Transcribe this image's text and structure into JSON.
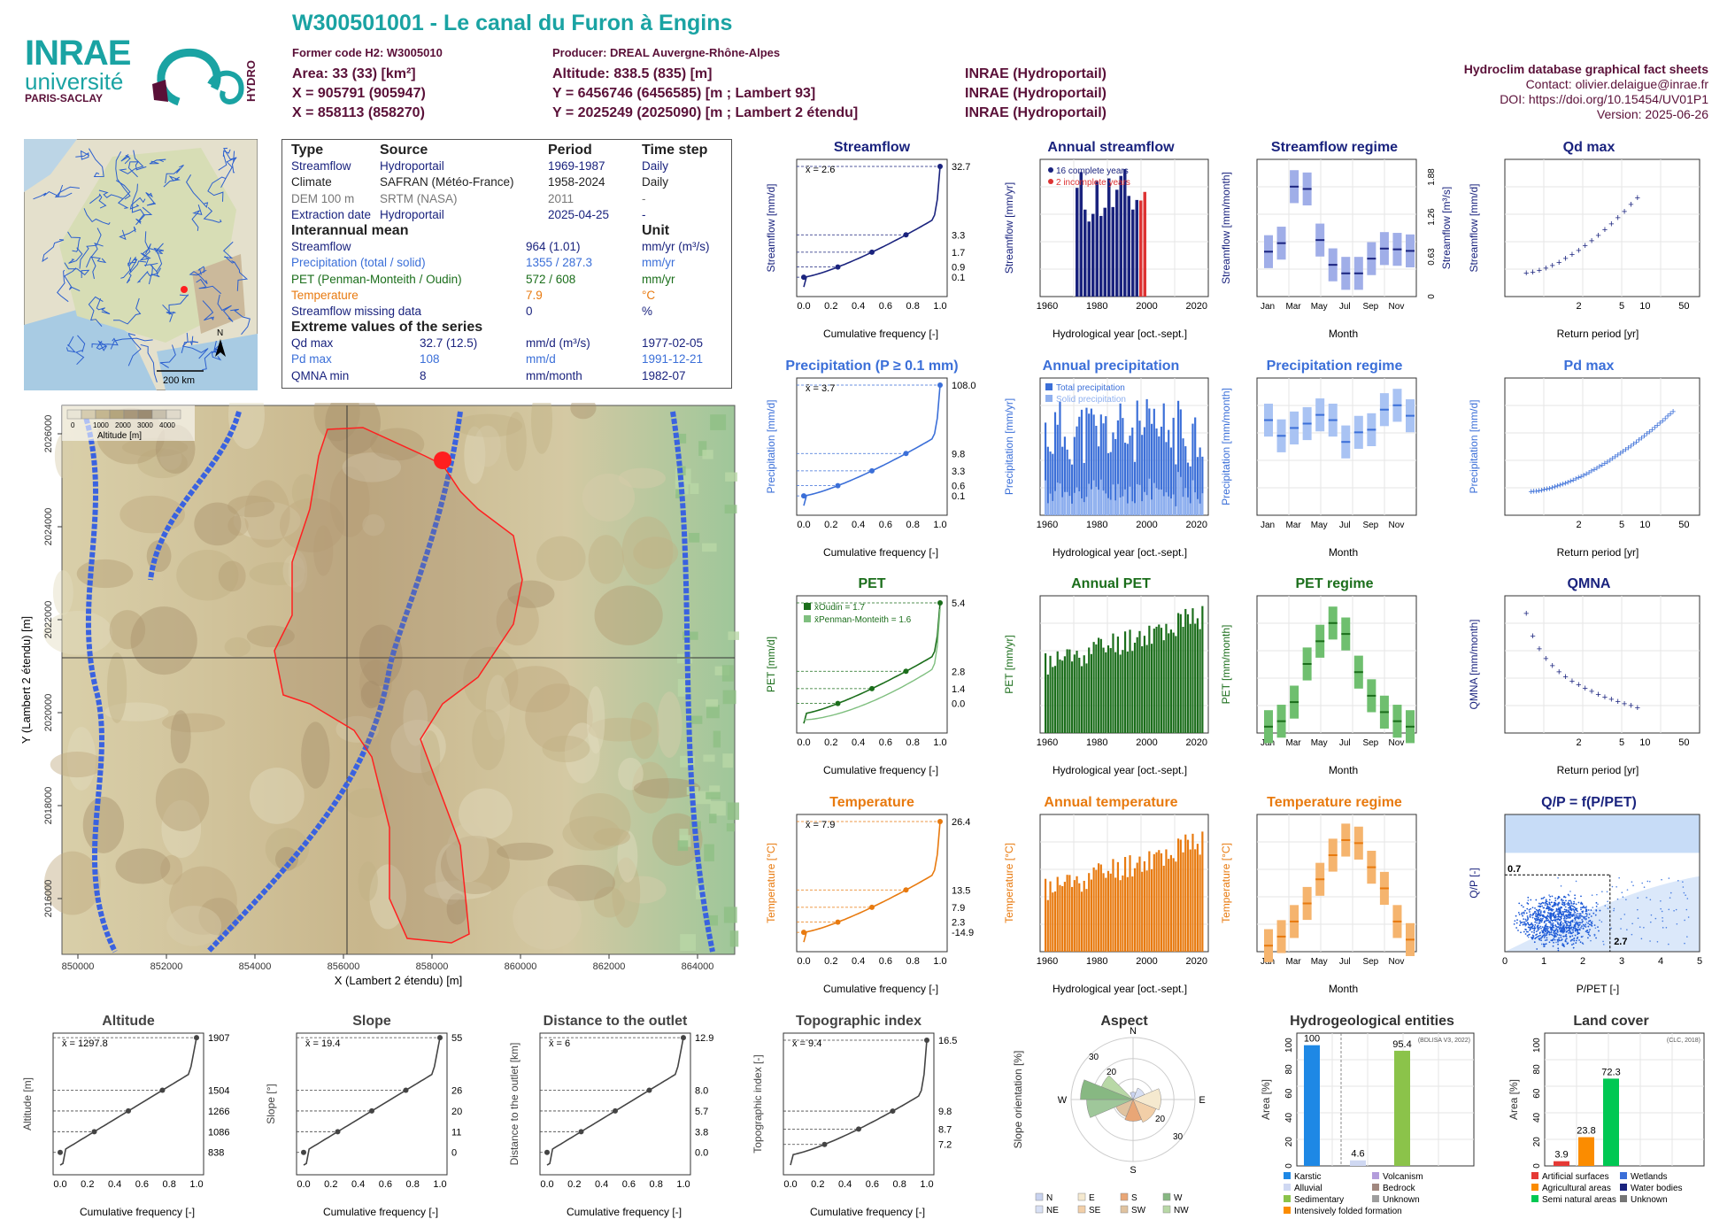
{
  "header": {
    "title": "W300501001 - Le canal du Furon à Engins",
    "former_code": "Former code H2: W3005010",
    "producer": "Producer: DREAL Auvergne-Rhône-Alpes",
    "area": "Area: 33 (33) [km²]",
    "altitude": "Altitude: 838.5 (835) [m]",
    "x93": "X = 905791 (905947)",
    "y93": "Y = 6456746 (6456585) [m ; Lambert 93]",
    "src1": "INRAE (Hydroportail)",
    "x2e": "X = 858113 (858270)",
    "y2e": "Y = 2025249 (2025090) [m ; Lambert 2 étendu]",
    "src2": "INRAE (Hydroportail)",
    "src3": "INRAE (Hydroportail)"
  },
  "logos": {
    "inrae": "INRAE",
    "universite": "université",
    "paris_saclay": "PARIS-SACLAY",
    "hydro": "HYDRO"
  },
  "right_info": {
    "db": "Hydroclim database graphical fact sheets",
    "contact": "Contact: olivier.delaigue@inrae.fr",
    "doi": "DOI: https://doi.org/10.15454/UV01P1",
    "version": "Version: 2025-06-26"
  },
  "minimap": {
    "scale": "200 km",
    "north": "N"
  },
  "info_table": {
    "h1": [
      "Type",
      "Source",
      "Period",
      "Time step"
    ],
    "rows1": [
      [
        "Streamflow",
        "Hydroportail",
        "1969-1987",
        "Daily"
      ],
      [
        "Climate",
        "SAFRAN (Météo-France)",
        "1958-2024",
        "Daily"
      ],
      [
        "DEM 100 m",
        "SRTM (NASA)",
        "2011",
        "-"
      ],
      [
        "Extraction date",
        "Hydroportail",
        "2025-04-25",
        "-"
      ]
    ],
    "h2": [
      "Interannual mean",
      "Unit"
    ],
    "rows2": [
      [
        "Streamflow",
        "964 (1.01)",
        "mm/yr (m³/s)"
      ],
      [
        "Precipitation (total / solid)",
        "1355 / 287.3",
        "mm/yr"
      ],
      [
        "PET (Penman-Monteith / Oudin)",
        "572 / 608",
        "mm/yr"
      ],
      [
        "Temperature",
        "7.9",
        "°C"
      ],
      [
        "Streamflow missing data",
        "0",
        "%"
      ]
    ],
    "h3": "Extreme values of the series",
    "rows3": [
      [
        "Qd max",
        "32.7 (12.5)",
        "mm/d (m³/s)",
        "1977-02-05"
      ],
      [
        "Pd max",
        "108",
        "mm/d",
        "1991-12-21"
      ],
      [
        "QMNA min",
        "8",
        "mm/month",
        "1982-07"
      ]
    ]
  },
  "main_map": {
    "xlabel": "X (Lambert 2 étendu) [m]",
    "ylabel": "Y (Lambert 2 étendu) [m]",
    "xticks": [
      "850000",
      "852000",
      "854000",
      "856000",
      "858000",
      "860000",
      "862000",
      "864000"
    ],
    "yticks": [
      "2016000",
      "2018000",
      "2020000",
      "2022000",
      "2024000",
      "2026000"
    ],
    "legend_title": "Altitude [m]",
    "legend_ticks": [
      "0",
      "1000",
      "2000",
      "3000",
      "4000"
    ]
  },
  "chart_data": [
    {
      "id": "streamflow",
      "type": "line",
      "title": "Streamflow",
      "color": "#1a237e",
      "xlabel": "Cumulative frequency [-]",
      "ylabel": "Streamflow [mm/d]",
      "mean": "x̄ = 2.6",
      "y_log": true,
      "x": [
        0,
        0.25,
        0.5,
        0.75,
        1
      ],
      "y": [
        0.1,
        0.9,
        1.7,
        3.3,
        32.7
      ],
      "right_ticks": [
        "32.7",
        "3.3",
        "1.7",
        "0.9",
        "0.1"
      ]
    },
    {
      "id": "annual_streamflow",
      "type": "bar",
      "title": "Annual streamflow",
      "color": "#1a237e",
      "xlabel": "Hydrological year [oct.-sept.]",
      "ylabel": "Streamflow [mm/yr]",
      "legend": [
        "16 complete years",
        "2 incomplete years"
      ],
      "xlim": [
        1958,
        2024
      ],
      "ylim": [
        0,
        1200
      ]
    },
    {
      "id": "streamflow_regime",
      "type": "box",
      "title": "Streamflow regime",
      "color": "#1a237e",
      "xlabel": "Month",
      "ylabel": "Streamflow [mm/month]",
      "right_label": "Streamflow [m³/s]",
      "right_ticks": [
        "1.88",
        "1.26",
        "0.63",
        "0"
      ],
      "medians": [
        57,
        68,
        141,
        138,
        72,
        40,
        29,
        29,
        48,
        61,
        60,
        58
      ]
    },
    {
      "id": "qd_max",
      "type": "scatter",
      "title": "Qd max",
      "color": "#1a237e",
      "xlabel": "Return period [yr]",
      "ylabel": "Streamflow [mm/d]"
    },
    {
      "id": "precipitation",
      "type": "line",
      "title": "Precipitation (P ≥ 0.1 mm)",
      "color": "#3b6fd8",
      "xlabel": "Cumulative frequency [-]",
      "ylabel": "Precipitation [mm/d]",
      "mean": "x̄ = 3.7",
      "right_ticks": [
        "108.0",
        "9.8",
        "3.3",
        "0.6",
        "0.1"
      ]
    },
    {
      "id": "annual_precipitation",
      "type": "bar",
      "title": "Annual precipitation",
      "color": "#3b6fd8",
      "xlabel": "Hydrological year [oct.-sept.]",
      "ylabel": "Precipitation [mm/yr]",
      "legend": [
        "Total precipitation",
        "Solid precipitation"
      ]
    },
    {
      "id": "precipitation_regime",
      "type": "box",
      "title": "Precipitation regime",
      "color": "#3b6fd8",
      "xlabel": "Month",
      "ylabel": "Precipitation [mm/month]",
      "medians": [
        108,
        90,
        99,
        104,
        114,
        108,
        83,
        94,
        97,
        120,
        125,
        113
      ]
    },
    {
      "id": "pd_max",
      "type": "scatter",
      "title": "Pd max",
      "color": "#3b6fd8",
      "xlabel": "Return period [yr]",
      "ylabel": "Precipitation [mm/d]"
    },
    {
      "id": "pet",
      "type": "line",
      "title": "PET",
      "color": "#1b6e1b",
      "xlabel": "Cumulative frequency [-]",
      "ylabel": "PET [mm/d]",
      "legend": [
        "x̄Oudin = 1.7",
        "x̄Penman-Monteith = 1.6"
      ],
      "right_ticks": [
        "5.4",
        "2.8",
        "1.4",
        "0.0"
      ]
    },
    {
      "id": "annual_pet",
      "type": "bar",
      "title": "Annual PET",
      "color": "#1b6e1b",
      "xlabel": "Hydrological year [oct.-sept.]",
      "ylabel": "PET [mm/yr]"
    },
    {
      "id": "pet_regime",
      "type": "box",
      "title": "PET regime",
      "color": "#1b6e1b",
      "xlabel": "Month",
      "ylabel": "PET [mm/month]",
      "medians": [
        6,
        12,
        33,
        75,
        100,
        120,
        108,
        66,
        40,
        22,
        12,
        6
      ]
    },
    {
      "id": "qmna",
      "type": "scatter",
      "title": "QMNA",
      "color": "#1a237e",
      "xlabel": "Return period [yr]",
      "ylabel": "QMNA [mm/month]"
    },
    {
      "id": "temperature",
      "type": "line",
      "title": "Temperature",
      "color": "#e87a0f",
      "xlabel": "Cumulative frequency [-]",
      "ylabel": "Temperature [°C]",
      "mean": "x̄ = 7.9",
      "right_ticks": [
        "26.4",
        "13.5",
        "7.9",
        "2.3",
        "-14.9"
      ]
    },
    {
      "id": "annual_temperature",
      "type": "bar",
      "title": "Annual temperature",
      "color": "#e87a0f",
      "xlabel": "Hydrological year [oct.-sept.]",
      "ylabel": "Temperature [°C]"
    },
    {
      "id": "temperature_regime",
      "type": "box",
      "title": "Temperature regime",
      "color": "#e87a0f",
      "xlabel": "Month",
      "ylabel": "Temperature [°C]",
      "medians": [
        -0.5,
        1,
        3.5,
        6.5,
        10.5,
        14.5,
        17,
        16.5,
        12.5,
        9,
        3.5,
        0.5
      ]
    },
    {
      "id": "qp_ppet",
      "type": "scatter",
      "title": "Q/P = f(P/PET)",
      "color": "#1a237e",
      "xlabel": "P/PET [-]",
      "ylabel": "Q/P [-]",
      "annot": [
        "0.7",
        "2.7"
      ]
    },
    {
      "id": "altitude",
      "type": "line",
      "title": "Altitude",
      "color": "#444",
      "xlabel": "Cumulative frequency [-]",
      "ylabel": "Altitude [m]",
      "mean": "x̄ = 1297.8",
      "right_ticks": [
        "1907",
        "1504",
        "1266",
        "1086",
        "838"
      ]
    },
    {
      "id": "slope",
      "type": "line",
      "title": "Slope",
      "color": "#444",
      "xlabel": "Cumulative frequency [-]",
      "ylabel": "Slope [°]",
      "mean": "x̄ = 19.4",
      "right_ticks": [
        "55",
        "26",
        "20",
        "11",
        "0"
      ]
    },
    {
      "id": "distance",
      "type": "line",
      "title": "Distance to the outlet",
      "color": "#444",
      "xlabel": "Cumulative frequency [-]",
      "ylabel": "Distance to the outlet [km]",
      "mean": "x̄ = 6",
      "right_ticks": [
        "12.9",
        "8.0",
        "5.7",
        "3.8",
        "0.0"
      ]
    },
    {
      "id": "topo",
      "type": "line",
      "title": "Topographic index",
      "color": "#444",
      "xlabel": "Cumulative frequency [-]",
      "ylabel": "Topographic index [-]",
      "mean": "x̄ = 9.4",
      "right_ticks": [
        "16.5",
        "9.8",
        "8.7",
        "7.2"
      ]
    },
    {
      "id": "aspect",
      "type": "pie",
      "title": "Aspect",
      "ylabel": "Slope orientation [%]",
      "legend": [
        "N",
        "E",
        "S",
        "W",
        "NE",
        "SE",
        "SW",
        "NW"
      ]
    },
    {
      "id": "hydrogeology",
      "type": "bar",
      "title": "Hydrogeological entities",
      "ylabel": "Area [%]",
      "source": "(BDLISA V3, 2022)",
      "values": [
        100,
        4.6,
        95.4
      ],
      "legend": [
        "Karstic",
        "Volcanism",
        "Alluvial",
        "Bedrock",
        "Sedimentary",
        "Unknown",
        "Intensively folded formation"
      ]
    },
    {
      "id": "land_cover",
      "type": "bar",
      "title": "Land cover",
      "ylabel": "Area [%]",
      "source": "(CLC, 2018)",
      "values": [
        3.9,
        23.8,
        72.3
      ],
      "legend": [
        "Artificial surfaces",
        "Wetlands",
        "Agricultural areas",
        "Water bodies",
        "Semi natural areas",
        "Unknown"
      ]
    }
  ]
}
